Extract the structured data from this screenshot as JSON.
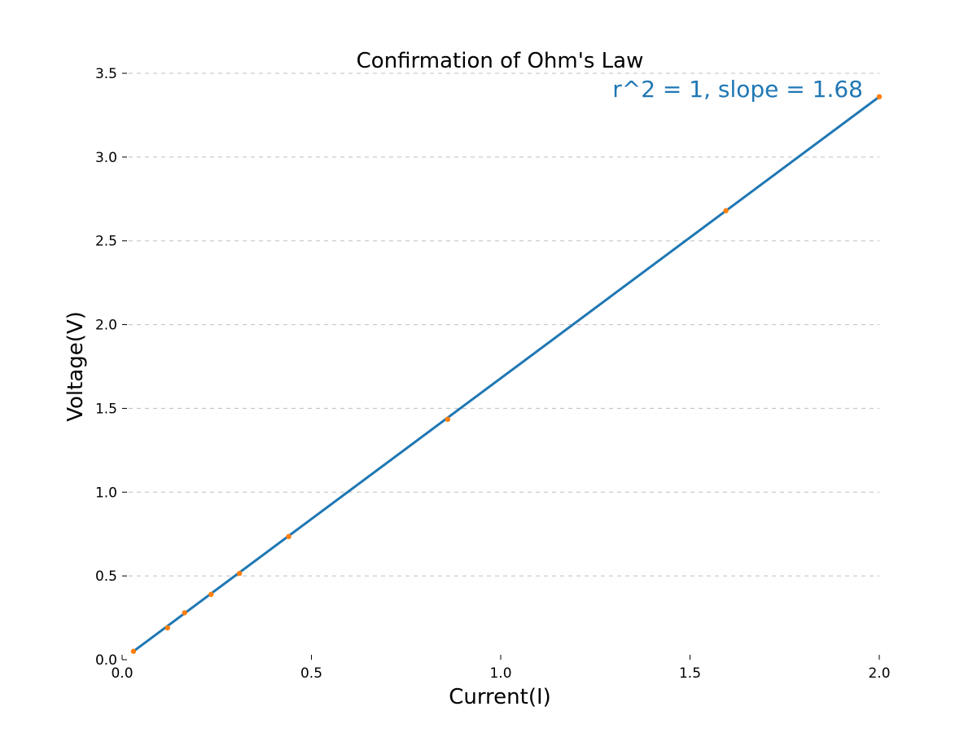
{
  "chart_data": {
    "type": "scatter",
    "title": "Confirmation of Ohm's Law",
    "xlabel": "Current(I)",
    "ylabel": "Voltage(V)",
    "xlim": [
      0.0,
      2.0
    ],
    "ylim": [
      0.0,
      3.5
    ],
    "x_ticks": [
      "0.0",
      "0.5",
      "1.0",
      "1.5",
      "2.0"
    ],
    "y_ticks": [
      "0.0",
      "0.5",
      "1.0",
      "1.5",
      "2.0",
      "2.5",
      "3.0",
      "3.5"
    ],
    "grid": "horizontal dashed",
    "annotation": "r^2 = 1, slope = 1.68",
    "points": {
      "x": [
        0.03,
        0.12,
        0.165,
        0.235,
        0.31,
        0.44,
        0.86,
        1.595,
        2.0
      ],
      "y": [
        0.05,
        0.19,
        0.28,
        0.39,
        0.515,
        0.735,
        1.435,
        2.68,
        3.36
      ]
    },
    "fit_line": {
      "x": [
        0.03,
        2.0
      ],
      "y": [
        0.05,
        3.36
      ]
    },
    "colors": {
      "line": "#1f77b4",
      "points": "#ff7f0e",
      "annotation": "#1f77b4",
      "grid": "#bfbfbf"
    }
  }
}
